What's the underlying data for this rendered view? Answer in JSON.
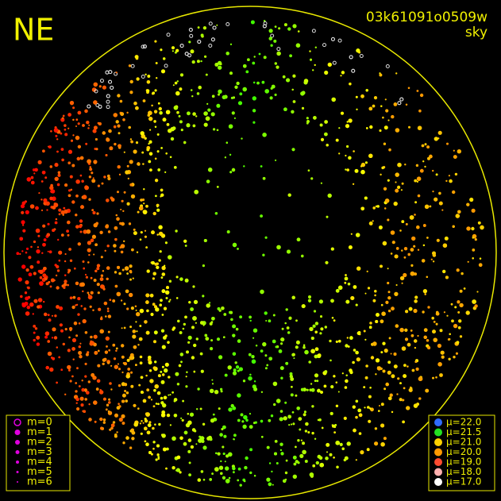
{
  "header": {
    "corner": "NE",
    "frame_id": "03k61091o0509w",
    "mode": "sky"
  },
  "magnitude_legend": {
    "color": "#e000e0",
    "items": [
      "m=0",
      "m=1",
      "m=2",
      "m=3",
      "m=4",
      "m=5",
      "m=6"
    ]
  },
  "sky_legend": {
    "items": [
      {
        "label": "μ=22.0",
        "color": "#2f6bff"
      },
      {
        "label": "μ=21.5",
        "color": "#22e022"
      },
      {
        "label": "μ=21.0",
        "color": "#ffd200"
      },
      {
        "label": "μ=20.0",
        "color": "#ff9a00"
      },
      {
        "label": "μ=19.0",
        "color": "#ff4a30"
      },
      {
        "label": "μ=18.0",
        "color": "#ffb0b0"
      },
      {
        "label": "μ=17.0",
        "color": "#ffffff"
      }
    ]
  }
}
